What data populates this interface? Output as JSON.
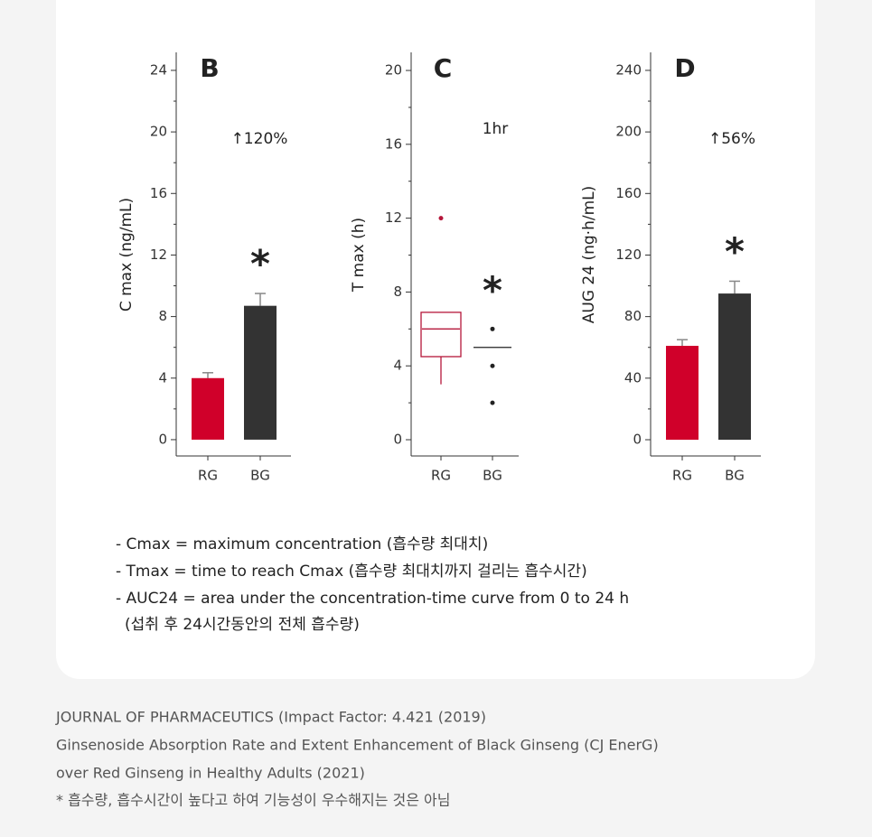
{
  "chart_data": [
    {
      "type": "bar",
      "panel": "B",
      "ylabel": "C max (ng/mL)",
      "annotation": "↑120%",
      "categories": [
        "RG",
        "BG"
      ],
      "values": [
        4.0,
        8.7
      ],
      "errors": [
        0.35,
        0.8
      ],
      "colors": [
        "#d0002a",
        "#333333"
      ],
      "significance": [
        null,
        "*"
      ],
      "ylim": [
        -1.06,
        25.17
      ],
      "yticks": [
        0,
        4,
        8,
        12,
        16,
        20,
        24
      ]
    },
    {
      "type": "box",
      "panel": "C",
      "ylabel": "T max (h)",
      "annotation": "1hr",
      "categories": [
        "RG",
        "BG"
      ],
      "boxes": [
        {
          "low": 3,
          "q1": 4.5,
          "median": 6,
          "q3": 6.9,
          "outliers": [
            12
          ]
        },
        {
          "median": 5,
          "outliers": [
            6,
            4,
            2
          ]
        }
      ],
      "colors": [
        "#b5173a",
        "#222222"
      ],
      "significance": [
        null,
        "*"
      ],
      "ylim": [
        -0.88,
        20.98
      ],
      "yticks": [
        0,
        4,
        8,
        12,
        16,
        20
      ]
    },
    {
      "type": "bar",
      "panel": "D",
      "ylabel": "AUG 24 (ng·h/mL)",
      "annotation": "↑56%",
      "categories": [
        "RG",
        "BG"
      ],
      "values": [
        61,
        95
      ],
      "errors": [
        4,
        8
      ],
      "colors": [
        "#d0002a",
        "#333333"
      ],
      "significance": [
        null,
        "*"
      ],
      "ylim": [
        -10.56,
        251.7
      ],
      "yticks": [
        0,
        40,
        80,
        120,
        160,
        200,
        240
      ]
    }
  ],
  "notes": [
    "- Cmax = maximum concentration (흡수량 최대치)",
    "- Tmax = time to reach Cmax (흡수량 최대치까지 걸리는 흡수시간)",
    "- AUC24 = area under the concentration-time curve from 0 to 24 h",
    "(섭취 후 24시간동안의 전체 흡수량)"
  ],
  "footer": [
    "JOURNAL OF PHARMACEUTICS (Impact Factor: 4.421 (2019)",
    "Ginsenoside Absorption Rate and Extent Enhancement of Black Ginseng (CJ EnerG)",
    "over Red Ginseng in Healthy Adults (2021)",
    "* 흡수량, 흡수시간이 높다고 하여 기능성이 우수해지는 것은 아님"
  ]
}
